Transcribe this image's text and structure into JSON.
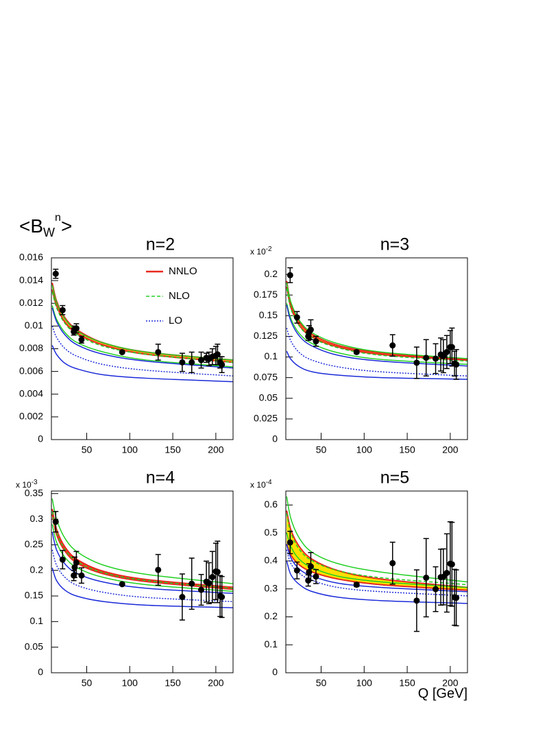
{
  "ylabel": {
    "open": "<B",
    "sub": "W",
    "sup": "n",
    "close": ">"
  },
  "xlabel": "Q [GeV]",
  "chart_data": [
    {
      "type": "line",
      "title": "n=2",
      "xlim": [
        9,
        220
      ],
      "xticks": [
        50,
        100,
        150,
        200
      ],
      "ylim": [
        0,
        0.016
      ],
      "yticks": [
        0,
        0.002,
        0.004,
        0.006,
        0.008,
        0.01,
        0.012,
        0.014,
        0.016
      ],
      "curve_x": [
        10,
        15,
        25,
        40,
        70,
        120,
        220
      ],
      "series": [
        {
          "name": "NNLO",
          "color": "#e8281e",
          "fill": "#ffa020",
          "style": "solid",
          "high": [
            0.0138,
            0.0122,
            0.0107,
            0.0096,
            0.0085,
            0.0077,
            0.007
          ],
          "low": [
            0.0132,
            0.0118,
            0.0103,
            0.0093,
            0.0083,
            0.0075,
            0.0068
          ]
        },
        {
          "name": "NLO",
          "color": "#22d022",
          "style": "dashed",
          "central": [
            0.013,
            0.0116,
            0.0102,
            0.0092,
            0.0082,
            0.0075,
            0.0068
          ],
          "high": [
            0.0136,
            0.0121,
            0.0106,
            0.0095,
            0.0085,
            0.0077,
            0.007
          ],
          "low": [
            0.0118,
            0.0106,
            0.0094,
            0.0085,
            0.0077,
            0.007,
            0.0064
          ]
        },
        {
          "name": "LO",
          "color": "#1a2ad8",
          "style": "dotted",
          "central": [
            0.01,
            0.009,
            0.008,
            0.0073,
            0.0066,
            0.0061,
            0.0056
          ],
          "high": [
            0.0116,
            0.0104,
            0.0092,
            0.0083,
            0.0075,
            0.0069,
            0.0063
          ],
          "low": [
            0.0083,
            0.0075,
            0.0067,
            0.0062,
            0.0057,
            0.0054,
            0.0051
          ]
        }
      ],
      "points": {
        "x": [
          14,
          22,
          35,
          36,
          38,
          44,
          91.2,
          133,
          161,
          172,
          183,
          189,
          192,
          196,
          200,
          202,
          205,
          207
        ],
        "values": [
          0.0146,
          0.0114,
          0.0095,
          0.0097,
          0.0098,
          0.0088,
          0.0077,
          0.0077,
          0.0068,
          0.0068,
          0.007,
          0.0072,
          0.0071,
          0.0073,
          0.0074,
          0.0075,
          0.0068,
          0.0066
        ],
        "errors": [
          0.0004,
          0.0004,
          0.0003,
          0.0003,
          0.0004,
          0.0003,
          0.0001,
          0.0007,
          0.0008,
          0.0009,
          0.0007,
          0.0004,
          0.0006,
          0.0007,
          0.0008,
          0.0009,
          0.0005,
          0.0007
        ]
      }
    },
    {
      "type": "line",
      "title": "n=3",
      "scale_label": {
        "base": "x 10",
        "exponent": "-2"
      },
      "xlim": [
        9,
        220
      ],
      "xticks": [
        50,
        100,
        150,
        200
      ],
      "ylim": [
        0,
        0.22
      ],
      "yticks": [
        0,
        0.025,
        0.05,
        0.075,
        0.1,
        0.125,
        0.15,
        0.175,
        0.2
      ],
      "curve_x": [
        10,
        15,
        25,
        40,
        70,
        120,
        220
      ],
      "series": [
        {
          "color": "#e8281e",
          "fill": "#ffa020",
          "style": "solid",
          "high": [
            0.192,
            0.165,
            0.142,
            0.127,
            0.114,
            0.105,
            0.097
          ],
          "low": [
            0.185,
            0.16,
            0.138,
            0.124,
            0.112,
            0.103,
            0.096
          ]
        },
        {
          "color": "#22d022",
          "style": "dashed",
          "central": [
            0.183,
            0.158,
            0.137,
            0.123,
            0.111,
            0.102,
            0.095
          ],
          "high": [
            0.19,
            0.166,
            0.144,
            0.129,
            0.116,
            0.106,
            0.098
          ],
          "low": [
            0.165,
            0.146,
            0.128,
            0.116,
            0.105,
            0.097,
            0.091
          ]
        },
        {
          "color": "#1a2ad8",
          "style": "dotted",
          "central": [
            0.135,
            0.119,
            0.105,
            0.096,
            0.088,
            0.082,
            0.077
          ],
          "high": [
            0.163,
            0.143,
            0.125,
            0.113,
            0.102,
            0.095,
            0.089
          ],
          "low": [
            0.107,
            0.097,
            0.088,
            0.082,
            0.078,
            0.075,
            0.073
          ]
        }
      ],
      "points": {
        "x": [
          14,
          22,
          35,
          36,
          38,
          44,
          91.2,
          133,
          161,
          172,
          183,
          189,
          192,
          196,
          200,
          202,
          205,
          207
        ],
        "values": [
          0.199,
          0.148,
          0.125,
          0.13,
          0.133,
          0.119,
          0.106,
          0.114,
          0.093,
          0.099,
          0.098,
          0.103,
          0.101,
          0.106,
          0.112,
          0.112,
          0.092,
          0.091
        ],
        "errors": [
          0.009,
          0.007,
          0.005,
          0.008,
          0.012,
          0.006,
          0.002,
          0.013,
          0.019,
          0.022,
          0.018,
          0.02,
          0.02,
          0.02,
          0.02,
          0.023,
          0.015,
          0.018
        ]
      }
    },
    {
      "type": "line",
      "title": "n=4",
      "scale_label": {
        "base": "x 10",
        "exponent": "-3"
      },
      "xlim": [
        9,
        220
      ],
      "xticks": [
        50,
        100,
        150,
        200
      ],
      "ylim": [
        0,
        0.355
      ],
      "yticks": [
        0,
        0.05,
        0.1,
        0.15,
        0.2,
        0.25,
        0.3,
        0.35
      ],
      "curve_x": [
        10,
        15,
        25,
        40,
        70,
        120,
        220
      ],
      "series": [
        {
          "color": "#e8281e",
          "fill": "#ff3020",
          "style": "solid",
          "high": [
            0.32,
            0.28,
            0.245,
            0.22,
            0.198,
            0.182,
            0.167
          ],
          "low": [
            0.31,
            0.27,
            0.237,
            0.213,
            0.193,
            0.178,
            0.163
          ]
        },
        {
          "color": "#22d022",
          "style": "dashed",
          "central": [
            0.315,
            0.275,
            0.24,
            0.216,
            0.195,
            0.18,
            0.165
          ],
          "high": [
            0.34,
            0.3,
            0.262,
            0.235,
            0.21,
            0.192,
            0.174
          ],
          "low": [
            0.29,
            0.255,
            0.225,
            0.204,
            0.186,
            0.172,
            0.159
          ]
        },
        {
          "color": "#1a2ad8",
          "style": "dotted",
          "central": [
            0.24,
            0.21,
            0.186,
            0.17,
            0.157,
            0.147,
            0.139
          ],
          "high": [
            0.275,
            0.24,
            0.212,
            0.193,
            0.177,
            0.165,
            0.155
          ],
          "low": [
            0.205,
            0.18,
            0.161,
            0.149,
            0.139,
            0.132,
            0.127
          ]
        }
      ],
      "points": {
        "x": [
          14,
          22,
          35,
          36,
          38,
          44,
          91.2,
          133,
          161,
          172,
          183,
          189,
          192,
          196,
          200,
          202,
          205,
          207
        ],
        "values": [
          0.295,
          0.221,
          0.19,
          0.206,
          0.215,
          0.19,
          0.173,
          0.201,
          0.148,
          0.174,
          0.162,
          0.178,
          0.175,
          0.187,
          0.198,
          0.197,
          0.15,
          0.148
        ],
        "errors": [
          0.02,
          0.018,
          0.01,
          0.02,
          0.022,
          0.015,
          0.002,
          0.03,
          0.045,
          0.05,
          0.03,
          0.04,
          0.04,
          0.05,
          0.055,
          0.06,
          0.04,
          0.04
        ]
      }
    },
    {
      "type": "line",
      "title": "n=5",
      "scale_label": {
        "base": "x 10",
        "exponent": "-4"
      },
      "xlim": [
        9,
        220
      ],
      "xticks": [
        50,
        100,
        150,
        200
      ],
      "ylim": [
        0,
        0.65
      ],
      "yticks": [
        0,
        0.1,
        0.2,
        0.3,
        0.4,
        0.5,
        0.6
      ],
      "curve_x": [
        10,
        15,
        25,
        40,
        70,
        120,
        220
      ],
      "series": [
        {
          "color": "#e8281e",
          "fill": "#ffe000",
          "style": "solid",
          "high": [
            0.58,
            0.51,
            0.45,
            0.405,
            0.365,
            0.335,
            0.305
          ],
          "low": [
            0.46,
            0.42,
            0.385,
            0.36,
            0.335,
            0.315,
            0.295
          ]
        },
        {
          "color": "#22d022",
          "style": "dashed",
          "central": [
            0.57,
            0.5,
            0.44,
            0.4,
            0.365,
            0.34,
            0.315
          ],
          "high": [
            0.63,
            0.55,
            0.48,
            0.43,
            0.39,
            0.36,
            0.325
          ],
          "low": [
            0.5,
            0.45,
            0.405,
            0.375,
            0.345,
            0.325,
            0.305
          ]
        },
        {
          "color": "#1a2ad8",
          "style": "dotted",
          "central": [
            0.44,
            0.39,
            0.355,
            0.33,
            0.305,
            0.29,
            0.275
          ],
          "high": [
            0.46,
            0.41,
            0.37,
            0.345,
            0.32,
            0.305,
            0.29
          ],
          "low": [
            0.4,
            0.35,
            0.315,
            0.29,
            0.27,
            0.258,
            0.248
          ]
        }
      ],
      "points": {
        "x": [
          14,
          22,
          35,
          36,
          38,
          44,
          91.2,
          133,
          161,
          172,
          183,
          189,
          192,
          196,
          200,
          202,
          205,
          207
        ],
        "values": [
          0.466,
          0.366,
          0.33,
          0.36,
          0.38,
          0.344,
          0.315,
          0.392,
          0.258,
          0.34,
          0.299,
          0.342,
          0.343,
          0.357,
          0.39,
          0.388,
          0.27,
          0.268
        ],
        "errors": [
          0.04,
          0.03,
          0.02,
          0.03,
          0.05,
          0.025,
          0.007,
          0.075,
          0.11,
          0.14,
          0.08,
          0.1,
          0.1,
          0.14,
          0.15,
          0.15,
          0.1,
          0.1
        ]
      }
    }
  ]
}
